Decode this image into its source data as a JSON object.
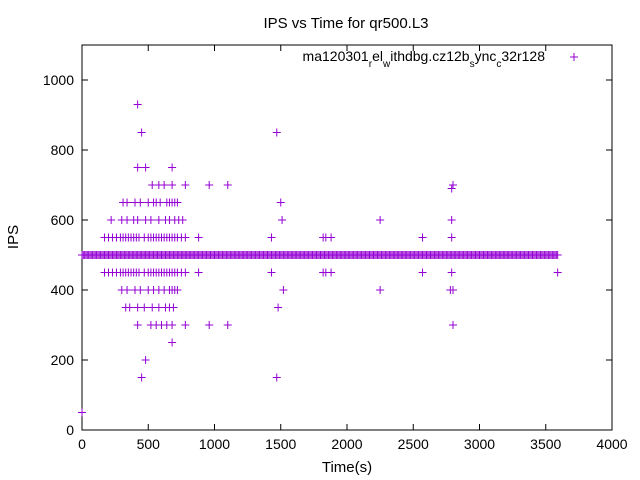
{
  "chart_data": {
    "type": "scatter",
    "title": "IPS vs Time for qr500.L3",
    "xlabel": "Time(s)",
    "ylabel": "IPS",
    "xlim": [
      0,
      4000
    ],
    "ylim": [
      0,
      1100
    ],
    "xticks": [
      0,
      500,
      1000,
      1500,
      2000,
      2500,
      3000,
      3500,
      4000
    ],
    "yticks": [
      0,
      200,
      400,
      600,
      800,
      1000
    ],
    "grid": false,
    "legend_position": "top-right",
    "series": [
      {
        "name": "ma120301_rel_withdbg.cz12b_sync_c32r128",
        "legend_parts": [
          {
            "t": "ma120301",
            "sub": false
          },
          {
            "t": "r",
            "sub": true
          },
          {
            "t": "el",
            "sub": false
          },
          {
            "t": "w",
            "sub": true
          },
          {
            "t": "ithdbg.cz12b",
            "sub": false
          },
          {
            "t": "s",
            "sub": true
          },
          {
            "t": "ync",
            "sub": false
          },
          {
            "t": "c",
            "sub": true
          },
          {
            "t": "32r128",
            "sub": false
          }
        ],
        "color": "#9400d3",
        "marker": "plus",
        "dense_line": {
          "y": 500,
          "x_from": 0,
          "x_to": 3590,
          "step": 10
        },
        "points": [
          [
            0,
            50
          ],
          [
            420,
            930
          ],
          [
            450,
            850
          ],
          [
            1470,
            850
          ],
          [
            420,
            750
          ],
          [
            480,
            750
          ],
          [
            680,
            750
          ],
          [
            530,
            700
          ],
          [
            580,
            700
          ],
          [
            620,
            700
          ],
          [
            680,
            700
          ],
          [
            780,
            700
          ],
          [
            960,
            700
          ],
          [
            1100,
            700
          ],
          [
            2800,
            700
          ],
          [
            2790,
            690
          ],
          [
            310,
            650
          ],
          [
            340,
            650
          ],
          [
            400,
            650
          ],
          [
            440,
            650
          ],
          [
            500,
            650
          ],
          [
            540,
            650
          ],
          [
            560,
            650
          ],
          [
            590,
            650
          ],
          [
            640,
            650
          ],
          [
            660,
            650
          ],
          [
            680,
            650
          ],
          [
            700,
            650
          ],
          [
            720,
            650
          ],
          [
            1500,
            650
          ],
          [
            220,
            600
          ],
          [
            300,
            600
          ],
          [
            340,
            600
          ],
          [
            390,
            600
          ],
          [
            420,
            600
          ],
          [
            480,
            600
          ],
          [
            520,
            600
          ],
          [
            580,
            600
          ],
          [
            630,
            600
          ],
          [
            660,
            600
          ],
          [
            700,
            600
          ],
          [
            730,
            600
          ],
          [
            760,
            600
          ],
          [
            1510,
            600
          ],
          [
            2250,
            600
          ],
          [
            2790,
            600
          ],
          [
            170,
            550
          ],
          [
            200,
            550
          ],
          [
            230,
            550
          ],
          [
            260,
            550
          ],
          [
            290,
            550
          ],
          [
            310,
            550
          ],
          [
            330,
            550
          ],
          [
            350,
            550
          ],
          [
            370,
            550
          ],
          [
            390,
            550
          ],
          [
            410,
            550
          ],
          [
            430,
            550
          ],
          [
            470,
            550
          ],
          [
            500,
            550
          ],
          [
            520,
            550
          ],
          [
            540,
            550
          ],
          [
            560,
            550
          ],
          [
            580,
            550
          ],
          [
            600,
            550
          ],
          [
            620,
            550
          ],
          [
            640,
            550
          ],
          [
            660,
            550
          ],
          [
            680,
            550
          ],
          [
            700,
            550
          ],
          [
            720,
            550
          ],
          [
            750,
            550
          ],
          [
            780,
            550
          ],
          [
            880,
            550
          ],
          [
            1430,
            550
          ],
          [
            1820,
            550
          ],
          [
            1840,
            550
          ],
          [
            1880,
            550
          ],
          [
            2570,
            550
          ],
          [
            2790,
            550
          ],
          [
            170,
            450
          ],
          [
            200,
            450
          ],
          [
            230,
            450
          ],
          [
            260,
            450
          ],
          [
            290,
            450
          ],
          [
            310,
            450
          ],
          [
            330,
            450
          ],
          [
            350,
            450
          ],
          [
            370,
            450
          ],
          [
            390,
            450
          ],
          [
            410,
            450
          ],
          [
            430,
            450
          ],
          [
            470,
            450
          ],
          [
            500,
            450
          ],
          [
            520,
            450
          ],
          [
            540,
            450
          ],
          [
            560,
            450
          ],
          [
            580,
            450
          ],
          [
            600,
            450
          ],
          [
            620,
            450
          ],
          [
            640,
            450
          ],
          [
            660,
            450
          ],
          [
            680,
            450
          ],
          [
            700,
            450
          ],
          [
            720,
            450
          ],
          [
            750,
            450
          ],
          [
            780,
            450
          ],
          [
            880,
            450
          ],
          [
            1430,
            450
          ],
          [
            1820,
            450
          ],
          [
            1840,
            450
          ],
          [
            1880,
            450
          ],
          [
            2570,
            450
          ],
          [
            2790,
            450
          ],
          [
            3590,
            450
          ],
          [
            300,
            400
          ],
          [
            340,
            400
          ],
          [
            400,
            400
          ],
          [
            440,
            400
          ],
          [
            500,
            400
          ],
          [
            540,
            400
          ],
          [
            580,
            400
          ],
          [
            620,
            400
          ],
          [
            660,
            400
          ],
          [
            680,
            400
          ],
          [
            700,
            400
          ],
          [
            720,
            400
          ],
          [
            1520,
            400
          ],
          [
            2250,
            400
          ],
          [
            2780,
            400
          ],
          [
            2800,
            400
          ],
          [
            330,
            350
          ],
          [
            360,
            350
          ],
          [
            420,
            350
          ],
          [
            470,
            350
          ],
          [
            530,
            350
          ],
          [
            580,
            350
          ],
          [
            630,
            350
          ],
          [
            660,
            350
          ],
          [
            690,
            350
          ],
          [
            1480,
            350
          ],
          [
            420,
            300
          ],
          [
            520,
            300
          ],
          [
            560,
            300
          ],
          [
            600,
            300
          ],
          [
            640,
            300
          ],
          [
            680,
            300
          ],
          [
            780,
            300
          ],
          [
            960,
            300
          ],
          [
            1100,
            300
          ],
          [
            2800,
            300
          ],
          [
            680,
            250
          ],
          [
            480,
            200
          ],
          [
            450,
            150
          ],
          [
            1470,
            150
          ]
        ]
      }
    ]
  }
}
